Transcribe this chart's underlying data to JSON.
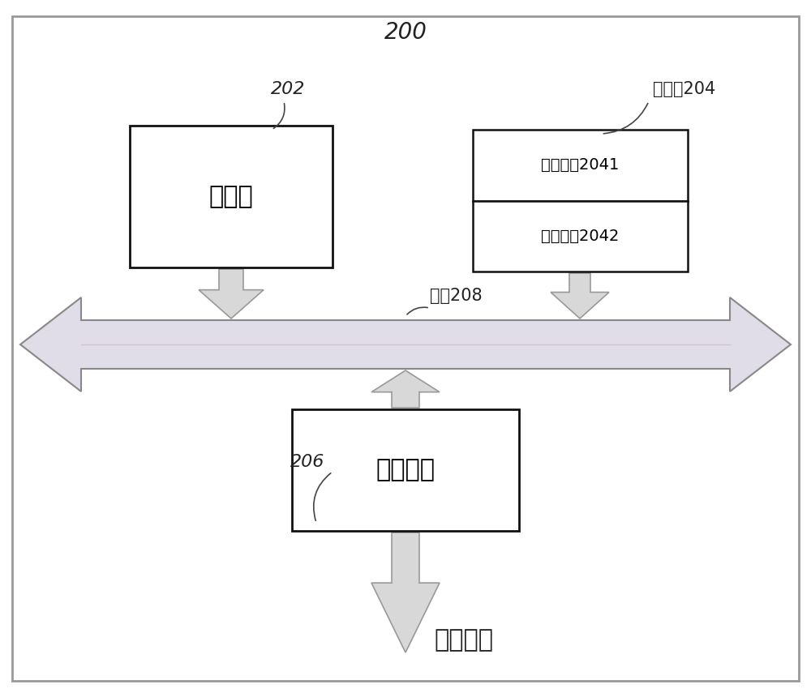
{
  "bg_color": "#ffffff",
  "border_color": "#aaaaaa",
  "arrow_fill": "#d8d8d8",
  "arrow_edge": "#999999",
  "bus_fill": "#e8e0e8",
  "bus_edge": "#999999",
  "box_fill": "#ffffff",
  "box_edge": "#111111",
  "title_label": "200",
  "processor_label": "处理器",
  "processor_ref": "202",
  "memory_label": "存储器204",
  "os_label": "操作系统2041",
  "app_label": "应用程序2042",
  "bus_label": "总线208",
  "comm_label": "通信接口",
  "comm_ref": "206",
  "other_label": "其他设备",
  "font_size_main": 22,
  "font_size_ref": 16,
  "font_size_small": 15
}
